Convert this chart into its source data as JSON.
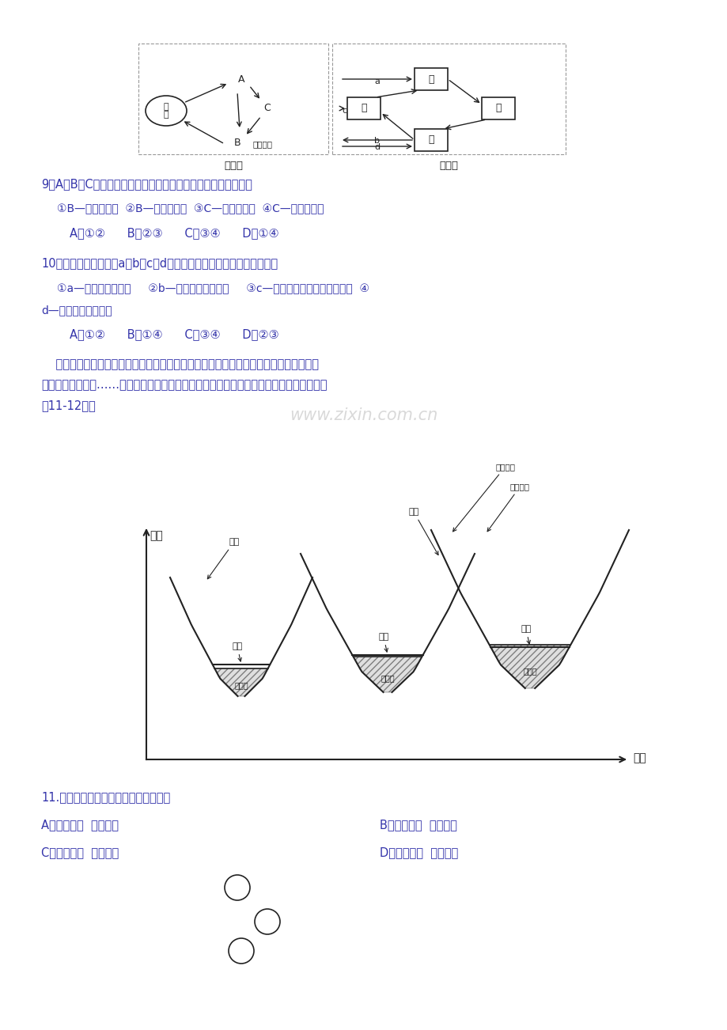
{
  "bg_color": "#ffffff",
  "blue": "#3333aa",
  "black": "#222222",
  "gray": "#888888",
  "q9_label": "9．A、B、C中，其形成与水循环类型有密切关系的组合正确的是",
  "q9_options": "①B—海陆间循环  ②B—陆地内循环  ③C—海陆间循环  ④C—陆地内循环",
  "q9_answers": "A．①②      B．②③      C．③④      D．①④",
  "q10_label": "10．若乙为水汽输送，a、b、c、d的含义和下列地理现象成因相符的是",
  "q10_options1": "①a—四川盆地多夜雨     ②b—云贵高原多地下河     ③c—东非高原形成热带草原气候  ④",
  "q10_options2": "d—长江三角洲的形成",
  "q10_answers": "A．①②      B．①④      C．③④      D．②③",
  "intro_text1": "    河谷中常有多级阶地，其中高于河漫滩的最低一级阶地被称为一级阶地，向上依次为二",
  "intro_text2": "级阶地、三级阶地……在正常情况下，阶地越高年代越老。读下列河流阶地形成示意图，完",
  "intro_text3": "成11-12题。",
  "q11_label": "11.图中河流阶地形成的主要地质作用有",
  "q11_optA": "A．地壳下降  流水侵蚀",
  "q11_optB": "B．地壳抬升  流水沉积",
  "q11_optC": "C．地壳下降  流水沉积",
  "q11_optD": "D．地壳抬升  流水侵蚀",
  "diagram_ylabel": "高程",
  "diagram_xlabel": "时间",
  "watermark": "www.zixin.com.cn"
}
